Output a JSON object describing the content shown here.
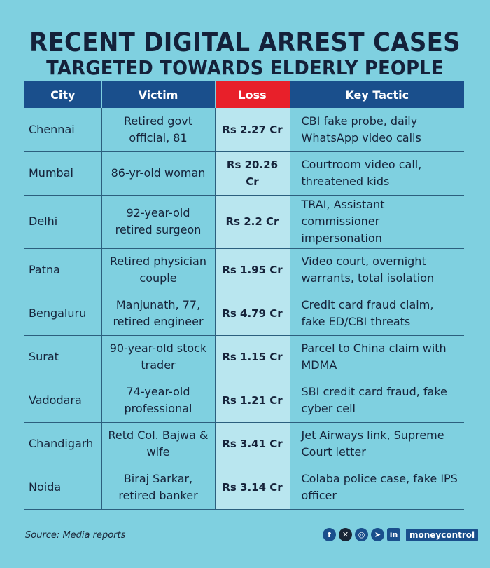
{
  "title": {
    "line1": "RECENT DIGITAL ARREST CASES",
    "line2": "TARGETED TOWARDS ELDERLY PEOPLE"
  },
  "table": {
    "headers": {
      "city": "City",
      "victim": "Victim",
      "loss": "Loss",
      "tactic": "Key Tactic"
    },
    "rows": [
      {
        "city": "Chennai",
        "victim": "Retired govt official, 81",
        "loss": "Rs 2.27 Cr",
        "tactic": "CBI fake probe, daily WhatsApp video calls"
      },
      {
        "city": "Mumbai",
        "victim": "86-yr-old woman",
        "loss": "Rs 20.26 Cr",
        "tactic": "Courtroom video call, threatened kids"
      },
      {
        "city": "Delhi",
        "victim": "92-year-old retired surgeon",
        "loss": "Rs 2.2 Cr",
        "tactic": "TRAI, Assistant commissioner impersonation"
      },
      {
        "city": "Patna",
        "victim": "Retired physician couple",
        "loss": "Rs 1.95 Cr",
        "tactic": "Video court, overnight warrants, total isolation"
      },
      {
        "city": "Bengaluru",
        "victim": "Manjunath, 77, retired engineer",
        "loss": "Rs 4.79 Cr",
        "tactic": "Credit card fraud claim, fake ED/CBI threats"
      },
      {
        "city": "Surat",
        "victim": "90-year-old stock trader",
        "loss": "Rs 1.15 Cr",
        "tactic": "Parcel to China claim with MDMA"
      },
      {
        "city": "Vadodara",
        "victim": "74-year-old professional",
        "loss": "Rs 1.21 Cr",
        "tactic": "SBI credit card fraud, fake cyber cell"
      },
      {
        "city": "Chandigarh",
        "victim": "Retd Col. Bajwa & wife",
        "loss": "Rs 3.41 Cr",
        "tactic": "Jet Airways link, Supreme Court letter"
      },
      {
        "city": "Noida",
        "victim": "Biraj Sarkar, retired banker",
        "loss": "Rs 3.14 Cr",
        "tactic": "Colaba police case, fake IPS officer"
      }
    ]
  },
  "source": "Source: Media reports",
  "social": {
    "icons": [
      "facebook-icon",
      "x-icon",
      "instagram-icon",
      "telegram-icon",
      "linkedin-icon"
    ],
    "brand": "moneycontrol"
  },
  "colors": {
    "background": "#7fd0e0",
    "header": "#1a4f8c",
    "loss_header": "#e8202a",
    "loss_column": "#b9e6ef"
  }
}
